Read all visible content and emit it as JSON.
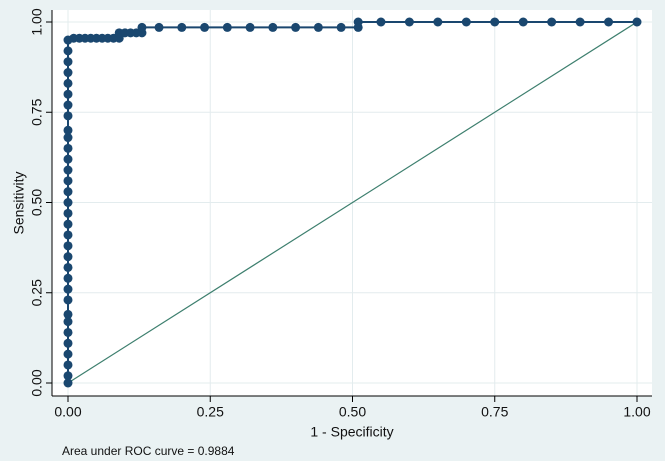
{
  "chart_data": {
    "type": "line",
    "x_label": "1 - Specificity",
    "y_label": "Sensitivity",
    "note": "Area under ROC curve = 0.9884",
    "xlim": [
      0,
      1
    ],
    "ylim": [
      0,
      1
    ],
    "xticks": [
      {
        "value": 0,
        "label": "0.00"
      },
      {
        "value": 0.25,
        "label": "0.25"
      },
      {
        "value": 0.5,
        "label": "0.50"
      },
      {
        "value": 0.75,
        "label": "0.75"
      },
      {
        "value": 1,
        "label": "1.00"
      }
    ],
    "yticks": [
      {
        "value": 0,
        "label": "0.00"
      },
      {
        "value": 0.25,
        "label": "0.25"
      },
      {
        "value": 0.5,
        "label": "0.50"
      },
      {
        "value": 0.75,
        "label": "0.75"
      },
      {
        "value": 1,
        "label": "1.00"
      }
    ],
    "grid": true,
    "series": [
      {
        "color": "#1a476f",
        "markers": true,
        "x": [
          0,
          0,
          0,
          0,
          0,
          0,
          0,
          0,
          0,
          0,
          0,
          0,
          0,
          0,
          0,
          0,
          0,
          0,
          0,
          0,
          0,
          0,
          0,
          0,
          0,
          0,
          0,
          0,
          0,
          0,
          0,
          0,
          0,
          0.01,
          0.02,
          0.03,
          0.04,
          0.05,
          0.06,
          0.07,
          0.08,
          0.09,
          0.09,
          0.1,
          0.11,
          0.12,
          0.13,
          0.13,
          0.16,
          0.2,
          0.24,
          0.28,
          0.32,
          0.36,
          0.4,
          0.44,
          0.48,
          0.51,
          0.51,
          0.55,
          0.6,
          0.65,
          0.7,
          0.75,
          0.8,
          0.85,
          0.9,
          0.95,
          1
        ],
        "values": [
          0,
          0.02,
          0.05,
          0.08,
          0.11,
          0.14,
          0.17,
          0.19,
          0.23,
          0.26,
          0.29,
          0.32,
          0.35,
          0.38,
          0.41,
          0.44,
          0.47,
          0.5,
          0.53,
          0.56,
          0.59,
          0.62,
          0.65,
          0.68,
          0.7,
          0.74,
          0.77,
          0.8,
          0.83,
          0.86,
          0.89,
          0.92,
          0.95,
          0.955,
          0.955,
          0.955,
          0.955,
          0.955,
          0.955,
          0.955,
          0.955,
          0.955,
          0.97,
          0.97,
          0.97,
          0.97,
          0.97,
          0.985,
          0.985,
          0.985,
          0.985,
          0.985,
          0.985,
          0.985,
          0.985,
          0.985,
          0.985,
          0.985,
          1,
          1,
          1,
          1,
          1,
          1,
          1,
          1,
          1,
          1,
          1
        ]
      },
      {
        "color": "#3d7f6e",
        "markers": false,
        "x": [
          0,
          1
        ],
        "values": [
          0,
          1
        ]
      }
    ]
  }
}
